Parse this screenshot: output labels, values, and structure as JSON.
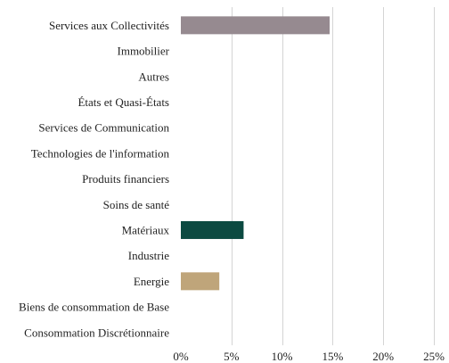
{
  "chart_data": {
    "type": "bar",
    "orientation": "horizontal",
    "categories": [
      "Services aux Collectivités",
      "Immobilier",
      "Autres",
      "États et Quasi-États",
      "Services de Communication",
      "Technologies de l'information",
      "Produits financiers",
      "Soins de santé",
      "Matériaux",
      "Industrie",
      "Energie",
      "Biens de consommation de Base",
      "Consommation Discrétionnaire"
    ],
    "values": [
      14.7,
      0,
      0,
      0,
      0,
      0,
      0,
      0,
      6.2,
      0,
      3.8,
      0,
      0
    ],
    "colors": [
      "#968a90",
      null,
      null,
      null,
      null,
      null,
      null,
      null,
      "#0c4a41",
      null,
      "#bfa57a",
      null,
      null
    ],
    "xlim": [
      0,
      25
    ],
    "x_ticks": [
      0,
      5,
      10,
      15,
      20,
      25
    ],
    "x_tick_labels": [
      "0%",
      "5%",
      "10%",
      "15%",
      "20%",
      "25%"
    ],
    "grid": "vertical",
    "legend": "none",
    "title": "",
    "xlabel": "",
    "ylabel": ""
  }
}
